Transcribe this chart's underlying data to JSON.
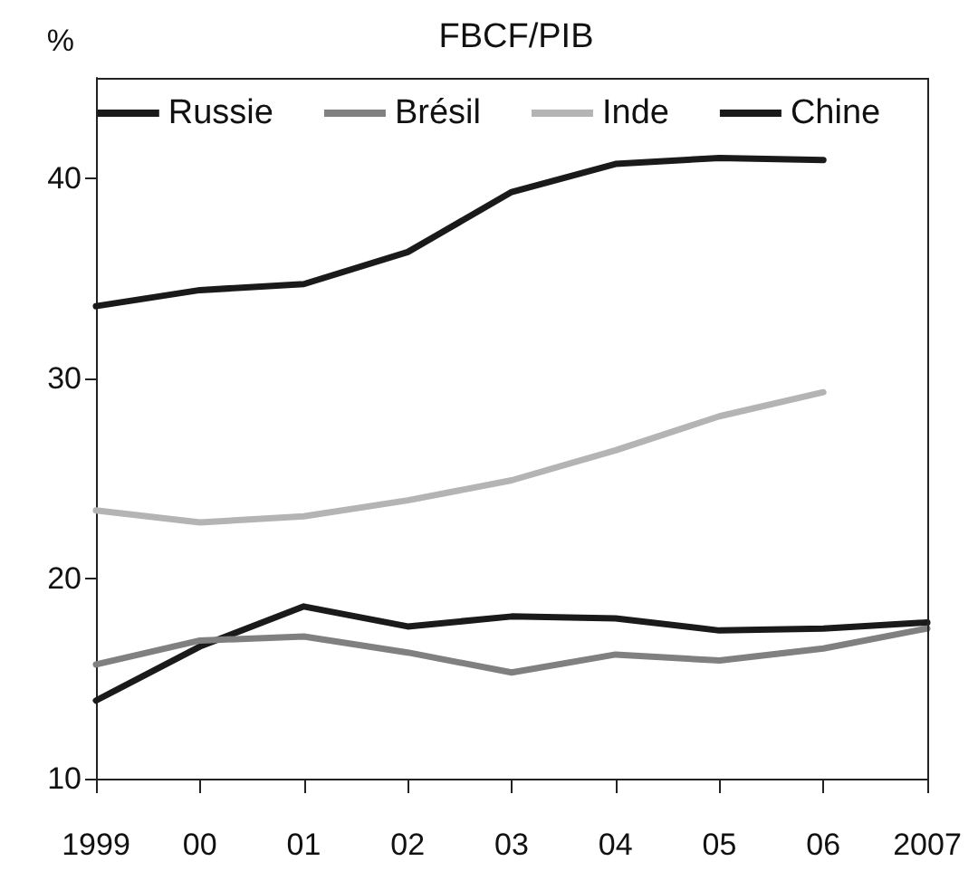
{
  "chart_data": {
    "type": "line",
    "title": "FBCF/PIB",
    "ylabel": "%",
    "categories": [
      "1999",
      "00",
      "01",
      "02",
      "03",
      "04",
      "05",
      "06",
      "2007"
    ],
    "series": [
      {
        "name": "Russie",
        "color": "#1a1a1a",
        "values": [
          13.9,
          16.6,
          18.6,
          17.6,
          18.1,
          18.0,
          17.4,
          17.5,
          17.8
        ]
      },
      {
        "name": "Brésil",
        "color": "#808080",
        "values": [
          15.7,
          16.9,
          17.1,
          16.3,
          15.3,
          16.2,
          15.9,
          16.5,
          17.5
        ]
      },
      {
        "name": "Inde",
        "color": "#b4b4b4",
        "values": [
          23.4,
          22.8,
          23.1,
          23.9,
          24.9,
          26.4,
          28.1,
          29.3,
          null
        ]
      },
      {
        "name": "Chine",
        "color": "#1a1a1a",
        "values": [
          33.6,
          34.4,
          34.7,
          36.3,
          39.3,
          40.7,
          41.0,
          40.9,
          null
        ]
      }
    ],
    "ylim": [
      10,
      45
    ],
    "yticks": [
      10,
      20,
      30,
      40
    ],
    "grid": false,
    "legend": "top",
    "marker": "none",
    "line_style": "solid"
  }
}
